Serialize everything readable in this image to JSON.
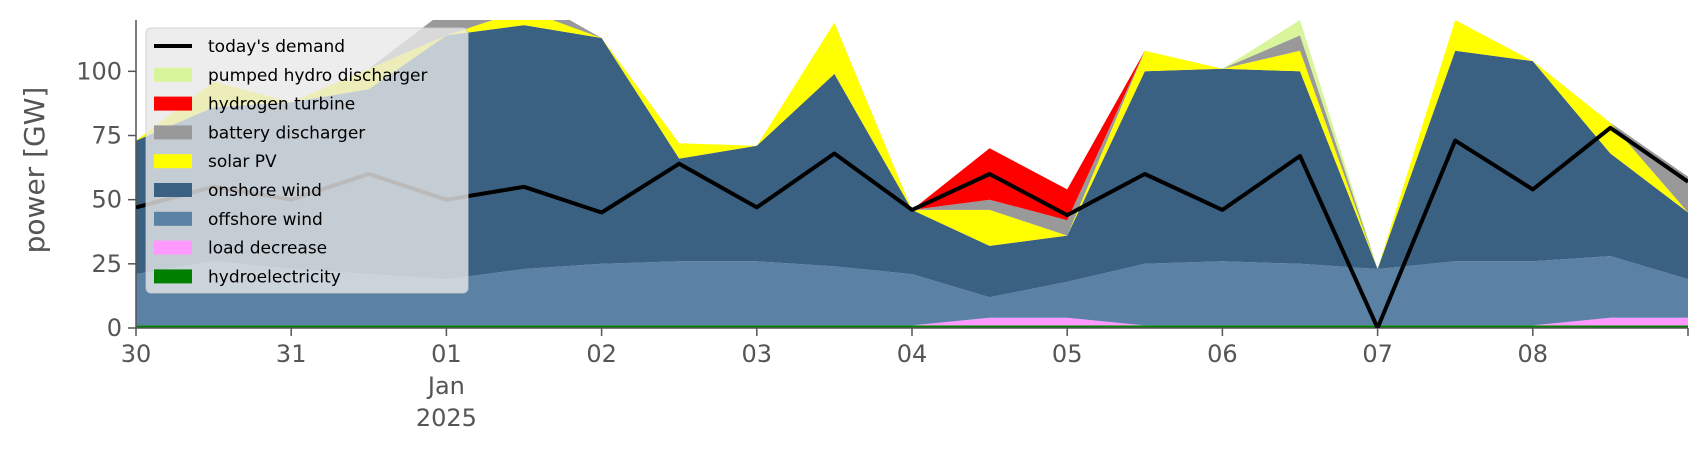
{
  "chart_data": {
    "type": "area",
    "ylabel": "power [GW]",
    "ylim": [
      0,
      120
    ],
    "xlim": [
      "2024-12-30T00:00",
      "2025-01-09T00:00"
    ],
    "y_ticks": [
      0,
      25,
      50,
      75,
      100
    ],
    "x_ticks": [
      {
        "at": "2024-12-30",
        "label": "30"
      },
      {
        "at": "2024-12-31",
        "label": "31"
      },
      {
        "at": "2025-01-01",
        "label": "01",
        "label2": "Jan",
        "label3": "2025"
      },
      {
        "at": "2025-01-02",
        "label": "02"
      },
      {
        "at": "2025-01-03",
        "label": "03"
      },
      {
        "at": "2025-01-04",
        "label": "04"
      },
      {
        "at": "2025-01-05",
        "label": "05"
      },
      {
        "at": "2025-01-06",
        "label": "06"
      },
      {
        "at": "2025-01-07",
        "label": "07"
      },
      {
        "at": "2025-01-08",
        "label": "08"
      }
    ],
    "x": [
      "2024-12-30T00:00",
      "2024-12-30T12:00",
      "2024-12-31T00:00",
      "2024-12-31T12:00",
      "2025-01-01T00:00",
      "2025-01-01T12:00",
      "2025-01-02T00:00",
      "2025-01-02T12:00",
      "2025-01-03T00:00",
      "2025-01-03T12:00",
      "2025-01-04T00:00",
      "2025-01-04T12:00",
      "2025-01-05T00:00",
      "2025-01-05T12:00",
      "2025-01-06T00:00",
      "2025-01-06T12:00",
      "2025-01-07T00:00",
      "2025-01-07T12:00",
      "2025-01-08T00:00",
      "2025-01-08T12:00",
      "2025-01-09T00:00"
    ],
    "legend_position": "top-left",
    "legend": [
      {
        "label": "today's demand",
        "color": "#000000",
        "kind": "line"
      },
      {
        "label": "pumped hydro discharger",
        "color": "#d9f59c",
        "kind": "patch"
      },
      {
        "label": "hydrogen turbine",
        "color": "#ff0000",
        "kind": "patch"
      },
      {
        "label": "battery discharger",
        "color": "#999999",
        "kind": "patch"
      },
      {
        "label": "solar PV",
        "color": "#ffff00",
        "kind": "patch"
      },
      {
        "label": "onshore wind",
        "color": "#3b6182",
        "kind": "patch"
      },
      {
        "label": "offshore wind",
        "color": "#5b81a5",
        "kind": "patch"
      },
      {
        "label": "load decrease",
        "color": "#ff99ff",
        "kind": "patch"
      },
      {
        "label": "hydroelectricity",
        "color": "#008000",
        "kind": "patch"
      }
    ],
    "series": [
      {
        "name": "hydroelectricity",
        "color": "#008000",
        "values": [
          1,
          1,
          1,
          1,
          1,
          1,
          1,
          1,
          1,
          1,
          1,
          1,
          1,
          1,
          1,
          1,
          1,
          1,
          1,
          1,
          1
        ]
      },
      {
        "name": "load decrease",
        "color": "#ff99ff",
        "values": [
          0,
          0,
          0,
          0,
          0,
          0,
          0,
          0,
          0,
          0,
          0,
          3,
          3,
          0,
          0,
          0,
          0,
          0,
          0,
          3,
          3
        ]
      },
      {
        "name": "offshore wind",
        "color": "#5b81a5",
        "values": [
          20,
          25,
          22,
          20,
          18,
          22,
          24,
          25,
          25,
          23,
          20,
          8,
          14,
          24,
          25,
          24,
          22,
          25,
          25,
          24,
          15
        ]
      },
      {
        "name": "onshore wind",
        "color": "#3b6182",
        "values": [
          52,
          60,
          65,
          72,
          95,
          95,
          88,
          40,
          45,
          75,
          25,
          20,
          18,
          75,
          75,
          75,
          0,
          82,
          78,
          40,
          26
        ]
      },
      {
        "name": "solar PV",
        "color": "#ffff00",
        "values": [
          0,
          10,
          0,
          8,
          0,
          6,
          0,
          6,
          0,
          20,
          0,
          14,
          0,
          8,
          0,
          8,
          0,
          12,
          0,
          12,
          0
        ]
      },
      {
        "name": "battery discharger",
        "color": "#999999",
        "values": [
          0,
          0,
          0,
          0,
          10,
          6,
          0,
          0,
          0,
          0,
          0,
          4,
          6,
          0,
          0,
          6,
          0,
          0,
          0,
          0,
          14
        ]
      },
      {
        "name": "hydrogen turbine",
        "color": "#ff0000",
        "values": [
          0,
          0,
          0,
          0,
          0,
          0,
          0,
          0,
          0,
          0,
          0,
          20,
          12,
          0,
          0,
          0,
          0,
          0,
          0,
          0,
          0
        ]
      },
      {
        "name": "pumped hydro discharger",
        "color": "#d9f59c",
        "values": [
          0,
          0,
          0,
          0,
          0,
          0,
          0,
          0,
          0,
          0,
          0,
          0,
          0,
          0,
          0,
          6,
          0,
          0,
          0,
          0,
          0
        ]
      }
    ],
    "demand": {
      "name": "today's demand",
      "color": "#000000",
      "values": [
        47,
        55,
        50,
        60,
        50,
        55,
        45,
        64,
        47,
        68,
        46,
        60,
        44,
        60,
        46,
        67,
        0,
        73,
        54,
        78,
        57
      ]
    }
  }
}
